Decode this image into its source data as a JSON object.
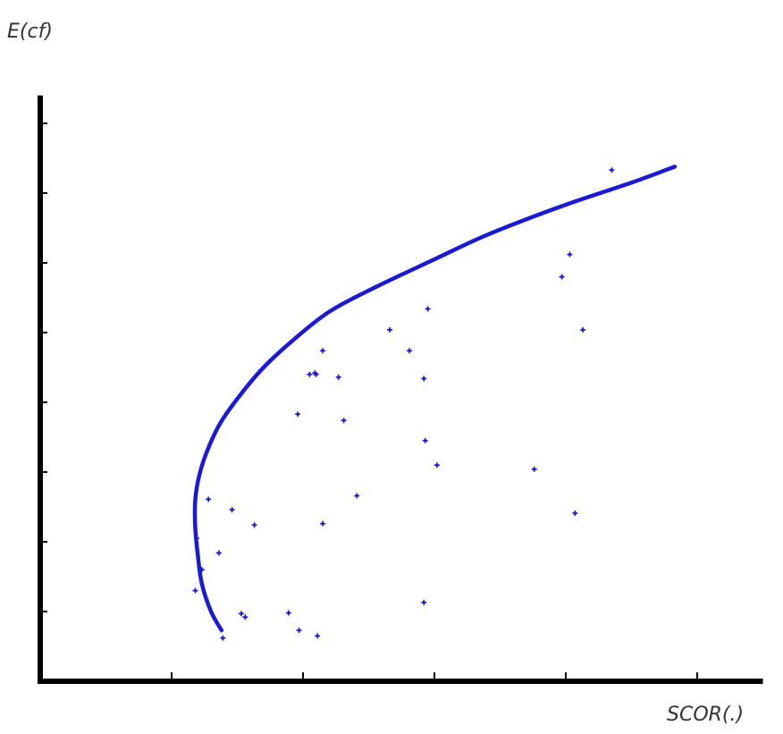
{
  "chart_data": {
    "type": "scatter",
    "title": "",
    "xlabel": "SCOR(.)",
    "ylabel": "E(cf)",
    "xlim": [
      0,
      5.5
    ],
    "ylim": [
      0,
      8.4
    ],
    "x_ticks": [
      1,
      2,
      3,
      4,
      5
    ],
    "y_ticks": [
      1,
      2,
      3,
      4,
      5,
      6,
      7,
      8
    ],
    "tick_labels_shown": false,
    "grid": false,
    "legend": "none",
    "colors": {
      "marks": "#1a1ad6",
      "axes": "#000000"
    },
    "frontier": {
      "x": [
        1.38,
        1.3,
        1.23,
        1.2,
        1.18,
        1.18,
        1.21,
        1.27,
        1.37,
        1.52,
        1.7,
        1.93,
        2.2,
        2.55,
        3.0,
        3.4,
        3.95,
        4.5,
        4.83
      ],
      "y": [
        0.73,
        1.0,
        1.4,
        1.8,
        2.2,
        2.6,
        2.95,
        3.3,
        3.7,
        4.1,
        4.5,
        4.9,
        5.3,
        5.65,
        6.05,
        6.4,
        6.8,
        7.15,
        7.38
      ]
    },
    "points": {
      "x": [
        4.35,
        3.97,
        4.03,
        4.13,
        2.95,
        2.66,
        2.81,
        2.92,
        2.15,
        2.09,
        2.1,
        2.27,
        2.05,
        1.96,
        2.31,
        2.93,
        3.02,
        3.76,
        4.07,
        2.41,
        1.28,
        1.46,
        1.63,
        2.15,
        1.19,
        1.23,
        1.36,
        1.18,
        2.92,
        1.53,
        1.56,
        1.89,
        1.97,
        2.11,
        1.39
      ],
      "y": [
        7.33,
        5.8,
        6.12,
        5.04,
        5.34,
        5.04,
        4.74,
        4.34,
        4.74,
        4.42,
        4.4,
        4.36,
        4.4,
        3.83,
        3.74,
        3.45,
        3.1,
        3.04,
        2.41,
        2.66,
        2.61,
        2.46,
        2.24,
        2.26,
        2.05,
        1.6,
        1.84,
        1.3,
        1.13,
        0.97,
        0.92,
        0.98,
        0.73,
        0.65,
        0.62
      ]
    }
  }
}
